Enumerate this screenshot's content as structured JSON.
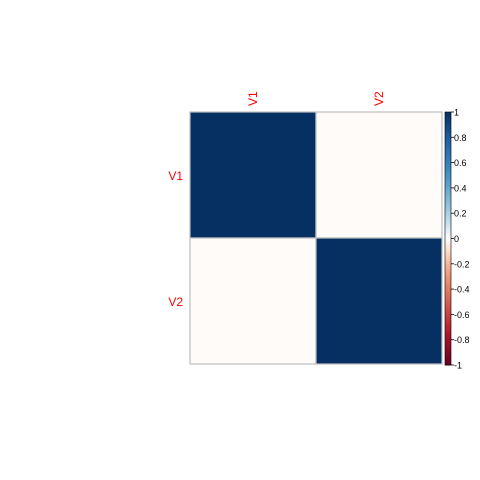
{
  "chart_data": {
    "type": "heatmap",
    "title": "",
    "xlabel": "",
    "ylabel": "",
    "row_labels": [
      "V1",
      "V2"
    ],
    "col_labels": [
      "V1",
      "V2"
    ],
    "values": [
      [
        1.0,
        -0.01
      ],
      [
        -0.01,
        1.0
      ]
    ],
    "zlim": [
      -1,
      1
    ],
    "colorbar": {
      "ticks": [
        1,
        0.8,
        0.6,
        0.4,
        0.2,
        0,
        -0.2,
        -0.4,
        -0.6,
        -0.8,
        -1
      ],
      "tick_labels": [
        "1",
        "0.8",
        "0.6",
        "0.4",
        "0.2",
        "0",
        "-0.2",
        "-0.4",
        "-0.6",
        "-0.8",
        "-1"
      ]
    },
    "label_color": "#ff0000",
    "grid": true,
    "legend_position": "right"
  }
}
